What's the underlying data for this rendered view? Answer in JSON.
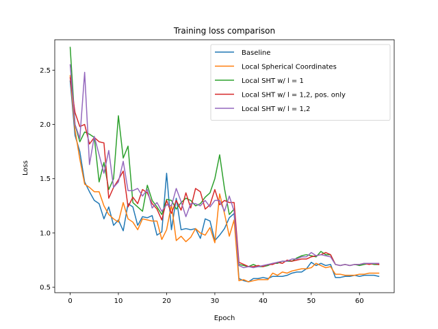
{
  "chart_data": {
    "type": "line",
    "title": "Training loss comparison",
    "xlabel": "Epoch",
    "ylabel": "Loss",
    "xlim": [
      -3.2,
      67.2
    ],
    "ylim": [
      0.45,
      2.78
    ],
    "xticks": [
      0,
      10,
      20,
      30,
      40,
      50,
      60
    ],
    "yticks": [
      0.5,
      1.0,
      1.5,
      2.0,
      2.5
    ],
    "ytick_labels": [
      "0.5",
      "1.0",
      "1.5",
      "2.0",
      "2.5"
    ],
    "grid": false,
    "legend_position": "top-right",
    "series": [
      {
        "name": "Baseline",
        "color": "#1f77b4",
        "values": [
          2.4,
          1.9,
          1.75,
          1.47,
          1.38,
          1.3,
          1.27,
          1.13,
          1.24,
          1.07,
          1.12,
          1.02,
          1.27,
          1.24,
          1.07,
          1.15,
          1.14,
          1.16,
          0.98,
          1.01,
          1.55,
          1.03,
          1.32,
          1.03,
          1.04,
          1.03,
          1.04,
          0.95,
          1.13,
          1.11,
          0.93,
          0.98,
          1.04,
          1.14,
          1.18,
          0.58,
          0.56,
          0.55,
          0.58,
          0.58,
          0.59,
          0.58,
          0.6,
          0.6,
          0.6,
          0.61,
          0.63,
          0.64,
          0.64,
          0.67,
          0.73,
          0.7,
          0.72,
          0.7,
          0.71,
          0.59,
          0.59,
          0.6,
          0.6,
          0.61,
          0.6,
          0.61,
          0.61,
          0.61,
          0.6
        ]
      },
      {
        "name": "Local Spherical Coordinates",
        "color": "#ff7f0e",
        "values": [
          2.45,
          1.95,
          1.68,
          1.45,
          1.42,
          1.38,
          1.38,
          1.25,
          1.17,
          1.13,
          1.1,
          1.28,
          1.13,
          1.1,
          1.03,
          1.13,
          1.12,
          1.11,
          1.11,
          0.94,
          1.03,
          1.26,
          0.93,
          0.97,
          0.92,
          0.96,
          1.04,
          1.0,
          0.98,
          1.05,
          0.91,
          1.36,
          1.18,
          0.97,
          1.12,
          0.56,
          0.57,
          0.55,
          0.56,
          0.57,
          0.57,
          0.57,
          0.63,
          0.61,
          0.64,
          0.63,
          0.65,
          0.66,
          0.67,
          0.67,
          0.68,
          0.72,
          0.7,
          0.68,
          0.69,
          0.62,
          0.62,
          0.61,
          0.61,
          0.61,
          0.62,
          0.62,
          0.63,
          0.63,
          0.63
        ]
      },
      {
        "name": "Local SHT w/ l = 1",
        "color": "#2ca02c",
        "values": [
          2.71,
          2.0,
          1.84,
          1.93,
          1.91,
          1.88,
          1.47,
          1.65,
          1.4,
          1.5,
          2.08,
          1.69,
          1.8,
          1.28,
          1.24,
          1.2,
          1.44,
          1.3,
          1.24,
          1.17,
          1.31,
          1.3,
          1.22,
          1.28,
          1.32,
          1.3,
          1.25,
          1.27,
          1.33,
          1.37,
          1.5,
          1.72,
          1.41,
          1.17,
          1.22,
          0.71,
          0.7,
          0.69,
          0.71,
          0.69,
          0.69,
          0.7,
          0.72,
          0.72,
          0.74,
          0.74,
          0.74,
          0.77,
          0.79,
          0.8,
          0.79,
          0.78,
          0.83,
          0.8,
          0.8,
          0.71,
          0.7,
          0.71,
          0.7,
          0.71,
          0.7,
          0.71,
          0.72,
          0.71,
          0.71
        ]
      },
      {
        "name": "Local SHT w/ l = 1,2, pos. only",
        "color": "#d62728",
        "values": [
          2.43,
          2.11,
          1.98,
          2.0,
          1.82,
          1.88,
          1.84,
          1.83,
          1.32,
          1.42,
          1.49,
          1.57,
          1.24,
          1.33,
          1.27,
          1.4,
          1.37,
          1.27,
          1.22,
          1.12,
          1.3,
          1.18,
          1.3,
          1.21,
          1.37,
          1.23,
          1.41,
          1.38,
          1.22,
          1.26,
          1.4,
          1.26,
          1.3,
          1.28,
          1.28,
          0.73,
          0.71,
          0.69,
          0.69,
          0.7,
          0.69,
          0.71,
          0.71,
          0.73,
          0.72,
          0.75,
          0.74,
          0.75,
          0.76,
          0.76,
          0.78,
          0.79,
          0.8,
          0.82,
          0.8,
          0.71,
          0.7,
          0.71,
          0.7,
          0.71,
          0.71,
          0.72,
          0.71,
          0.72,
          0.71
        ]
      },
      {
        "name": "Local SHT w/ l = 1,2",
        "color": "#9467bd",
        "values": [
          2.55,
          2.0,
          1.87,
          2.48,
          1.63,
          1.89,
          1.72,
          1.55,
          1.76,
          1.42,
          1.47,
          1.66,
          1.39,
          1.39,
          1.41,
          1.34,
          1.4,
          1.23,
          1.28,
          1.2,
          1.26,
          1.25,
          1.41,
          1.29,
          1.15,
          1.27,
          1.27,
          1.25,
          1.3,
          1.24,
          1.3,
          1.3,
          1.2,
          1.34,
          1.2,
          0.7,
          0.68,
          0.69,
          0.68,
          0.69,
          0.7,
          0.71,
          0.72,
          0.73,
          0.74,
          0.74,
          0.76,
          0.76,
          0.78,
          0.78,
          0.82,
          0.79,
          0.8,
          0.79,
          0.78,
          0.71,
          0.7,
          0.71,
          0.7,
          0.71,
          0.71,
          0.72,
          0.72,
          0.72,
          0.72
        ]
      }
    ]
  }
}
